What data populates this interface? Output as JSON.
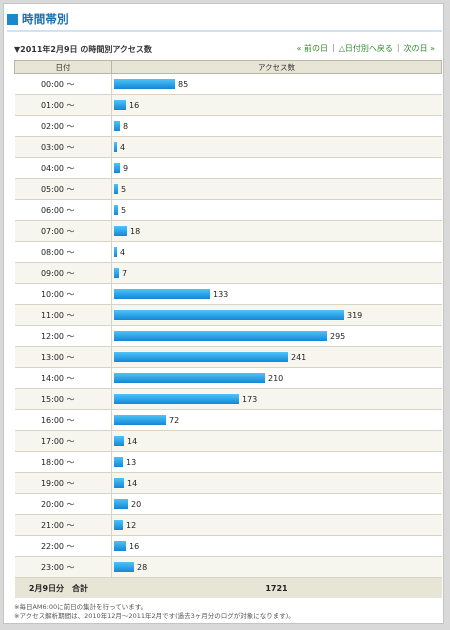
{
  "header": {
    "title": "時間帯別"
  },
  "subheader": "▼2011年2月9日 の時間別アクセス数",
  "nav": {
    "prev": "« 前の日",
    "back": "△日付別へ戻る",
    "next": "次の日 »"
  },
  "table": {
    "col_time": "日付",
    "col_access": "アクセス数",
    "rows": [
      {
        "time": "00:00 〜",
        "value": 85
      },
      {
        "time": "01:00 〜",
        "value": 16
      },
      {
        "time": "02:00 〜",
        "value": 8
      },
      {
        "time": "03:00 〜",
        "value": 4
      },
      {
        "time": "04:00 〜",
        "value": 9
      },
      {
        "time": "05:00 〜",
        "value": 5
      },
      {
        "time": "06:00 〜",
        "value": 5
      },
      {
        "time": "07:00 〜",
        "value": 18
      },
      {
        "time": "08:00 〜",
        "value": 4
      },
      {
        "time": "09:00 〜",
        "value": 7
      },
      {
        "time": "10:00 〜",
        "value": 133
      },
      {
        "time": "11:00 〜",
        "value": 319
      },
      {
        "time": "12:00 〜",
        "value": 295
      },
      {
        "time": "13:00 〜",
        "value": 241
      },
      {
        "time": "14:00 〜",
        "value": 210
      },
      {
        "time": "15:00 〜",
        "value": 173
      },
      {
        "time": "16:00 〜",
        "value": 72
      },
      {
        "time": "17:00 〜",
        "value": 14
      },
      {
        "time": "18:00 〜",
        "value": 13
      },
      {
        "time": "19:00 〜",
        "value": 14
      },
      {
        "time": "20:00 〜",
        "value": 20
      },
      {
        "time": "21:00 〜",
        "value": 12
      },
      {
        "time": "22:00 〜",
        "value": 16
      },
      {
        "time": "23:00 〜",
        "value": 28
      }
    ],
    "total_label": "2月9日分　合計",
    "total_value": "1721"
  },
  "notes": [
    "※毎日AM6:00に前日の集計を行っています。",
    "※アクセス解析期間は、2010年12月〜2011年2月です(過去3ヶ月分のログが対象になります)。"
  ],
  "colors": {
    "accent": "#1a88c9",
    "bar_top": "#4fc3f7",
    "bar_bottom": "#1387d6",
    "link": "#2f8a2f"
  }
}
